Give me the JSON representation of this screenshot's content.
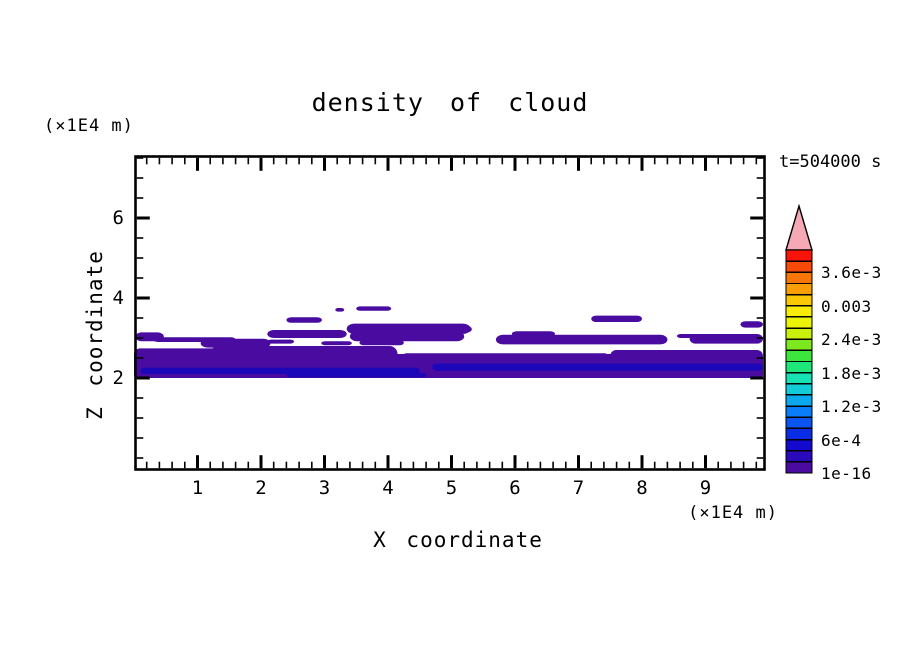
{
  "chart_data": {
    "type": "contour",
    "title": "density of cloud",
    "time_annotation": "t=504000 s",
    "xlabel": "X coordinate",
    "ylabel": "Z coordinate",
    "x_unit": "(×1E4 m)",
    "y_unit": "(×1E4 m)",
    "x_ticks": [
      1,
      2,
      3,
      4,
      5,
      6,
      7,
      8,
      9
    ],
    "y_ticks": [
      2,
      4,
      6
    ],
    "x_minor_step": 0.2,
    "y_minor_step": 0.5,
    "x_range": [
      0,
      9.94
    ],
    "y_range": [
      -0.3,
      7.575
    ],
    "grid": false,
    "legend_position": "right",
    "colorbar": {
      "labels_top_to_bottom": [
        "3.6e-3",
        "0.003",
        "2.4e-3",
        "1.8e-3",
        "1.2e-3",
        "6e-4",
        "1e-16"
      ],
      "segment_colors_bottom_to_top": [
        "#4A0BA0",
        "#2A0ABA",
        "#120ACF",
        "#0A2CE4",
        "#0A54F0",
        "#0A7EF8",
        "#0CA8EE",
        "#12CCD8",
        "#16E2B4",
        "#1EE87A",
        "#3CE63C",
        "#7EE81E",
        "#C8F00A",
        "#ECF406",
        "#F8EC04",
        "#FAC806",
        "#FA9E06",
        "#F87606",
        "#F84A06",
        "#F81408"
      ],
      "overflow_arrow_color": "#F5A9B4",
      "label_every_n_segments": 3
    },
    "cloud_levels": {
      "base": "#4A0BA0",
      "dense": "#1C08B8"
    },
    "cloud_regions": [
      {
        "x": 0.0,
        "w": 9.94,
        "zb": 2.0,
        "zt": 2.6,
        "level": "base",
        "r": 3
      },
      {
        "x": 0.0,
        "w": 1.6,
        "zb": 2.3,
        "zt": 2.74,
        "level": "base",
        "r": 6
      },
      {
        "x": 1.2,
        "w": 2.95,
        "zb": 2.35,
        "zt": 2.8,
        "level": "base",
        "r": 8
      },
      {
        "x": 4.2,
        "w": 3.3,
        "zb": 2.25,
        "zt": 2.62,
        "level": "base",
        "r": 6
      },
      {
        "x": 7.5,
        "w": 2.44,
        "zb": 2.3,
        "zt": 2.7,
        "level": "base",
        "r": 6
      },
      {
        "x": 0.02,
        "w": 0.45,
        "zb": 2.92,
        "zt": 3.14,
        "level": "base",
        "r": 6
      },
      {
        "x": 0.3,
        "w": 1.3,
        "zb": 2.9,
        "zt": 3.02,
        "level": "base",
        "r": 5
      },
      {
        "x": 1.05,
        "w": 1.1,
        "zb": 2.76,
        "zt": 2.98,
        "level": "base",
        "r": 7
      },
      {
        "x": 2.1,
        "w": 1.25,
        "zb": 3.0,
        "zt": 3.2,
        "level": "base",
        "r": 7
      },
      {
        "x": 2.1,
        "w": 0.42,
        "zb": 2.86,
        "zt": 2.96,
        "level": "base",
        "r": 4
      },
      {
        "x": 2.95,
        "w": 0.48,
        "zb": 2.82,
        "zt": 2.92,
        "level": "base",
        "r": 4
      },
      {
        "x": 3.55,
        "w": 0.7,
        "zb": 2.82,
        "zt": 2.94,
        "level": "base",
        "r": 4
      },
      {
        "x": 3.35,
        "w": 1.95,
        "zb": 3.1,
        "zt": 3.36,
        "level": "base",
        "r": 8
      },
      {
        "x": 4.6,
        "w": 0.72,
        "zb": 3.14,
        "zt": 3.3,
        "level": "base",
        "r": 5
      },
      {
        "x": 3.4,
        "w": 1.8,
        "zb": 2.92,
        "zt": 3.16,
        "level": "base",
        "r": 7
      },
      {
        "x": 5.7,
        "w": 2.7,
        "zb": 2.84,
        "zt": 3.08,
        "level": "base",
        "r": 7
      },
      {
        "x": 5.95,
        "w": 0.68,
        "zb": 3.04,
        "zt": 3.17,
        "level": "base",
        "r": 5
      },
      {
        "x": 7.2,
        "w": 0.8,
        "zb": 3.4,
        "zt": 3.56,
        "level": "base",
        "r": 5
      },
      {
        "x": 8.55,
        "w": 0.42,
        "zb": 3.0,
        "zt": 3.1,
        "level": "base",
        "r": 4
      },
      {
        "x": 8.75,
        "w": 1.19,
        "zb": 2.86,
        "zt": 3.1,
        "level": "base",
        "r": 6
      },
      {
        "x": 9.55,
        "w": 0.39,
        "zb": 3.26,
        "zt": 3.42,
        "level": "base",
        "r": 5
      },
      {
        "x": 2.4,
        "w": 0.56,
        "zb": 3.38,
        "zt": 3.52,
        "level": "base",
        "r": 5
      },
      {
        "x": 3.17,
        "w": 0.14,
        "zb": 3.66,
        "zt": 3.75,
        "level": "base",
        "r": 3
      },
      {
        "x": 3.5,
        "w": 0.55,
        "zb": 3.68,
        "zt": 3.79,
        "level": "base",
        "r": 4
      },
      {
        "x": 0.1,
        "w": 4.4,
        "zb": 2.1,
        "zt": 2.26,
        "level": "dense",
        "r": 4
      },
      {
        "x": 4.7,
        "w": 5.24,
        "zb": 2.18,
        "zt": 2.36,
        "level": "dense",
        "r": 4
      },
      {
        "x": 2.4,
        "w": 2.2,
        "zb": 2.02,
        "zt": 2.12,
        "level": "dense",
        "r": 3
      }
    ]
  }
}
